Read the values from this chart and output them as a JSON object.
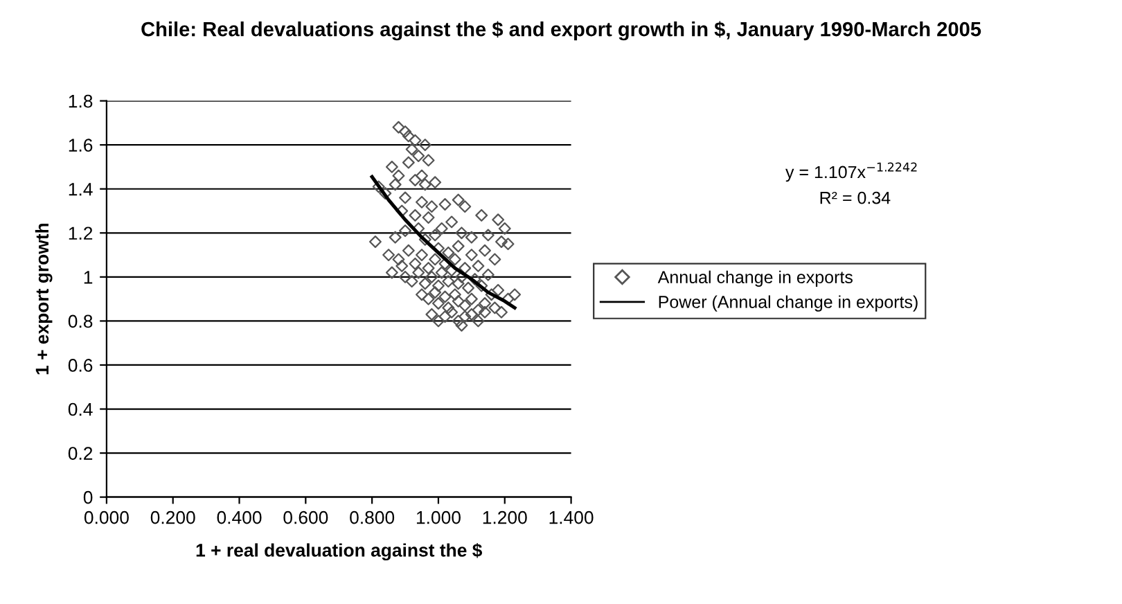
{
  "chart_data": {
    "type": "scatter",
    "title": "Chile: Real devaluations against the $ and export growth in $, January 1990-March 2005",
    "xlabel": "1 + real devaluation against the $",
    "ylabel": "1 + export growth",
    "annotations": [
      "y = 1.107x$^{−1.2242}$",
      "R² = 0.34"
    ],
    "xlim": [
      0,
      1.4
    ],
    "xticks": [
      {
        "value": 0,
        "label": "0.000"
      },
      {
        "value": 0.2,
        "label": "0.200"
      },
      {
        "value": 0.4,
        "label": "0.400"
      },
      {
        "value": 0.6,
        "label": "0.600"
      },
      {
        "value": 0.8,
        "label": "0.800"
      },
      {
        "value": 1.0,
        "label": "1.000"
      },
      {
        "value": 1.2,
        "label": "1.200"
      },
      {
        "value": 1.4,
        "label": "1.400"
      }
    ],
    "ylim": [
      0,
      1.8
    ],
    "yticks": [
      0,
      0.2,
      0.4,
      0.6,
      0.8,
      1,
      1.2,
      1.4,
      1.6,
      1.8
    ],
    "grid": "y",
    "legend": "right",
    "series": [
      {
        "name": "Annual change in exports",
        "marker": "diamond",
        "color": "#555555",
        "x": [
          0.88,
          0.9,
          0.91,
          0.93,
          0.92,
          0.96,
          0.94,
          0.91,
          0.97,
          0.86,
          0.88,
          0.93,
          0.95,
          0.96,
          0.99,
          0.87,
          0.82,
          0.84,
          0.9,
          0.95,
          0.98,
          1.02,
          0.89,
          0.93,
          0.97,
          1.06,
          1.08,
          1.13,
          1.18,
          1.2,
          0.81,
          0.87,
          0.9,
          0.94,
          0.96,
          0.99,
          1.01,
          1.04,
          1.07,
          1.1,
          1.15,
          1.19,
          1.21,
          0.85,
          0.88,
          0.91,
          0.93,
          0.95,
          0.97,
          0.99,
          1.0,
          1.02,
          1.03,
          1.05,
          1.06,
          1.08,
          1.1,
          1.12,
          1.14,
          1.17,
          0.9,
          0.92,
          0.94,
          0.96,
          0.98,
          1.0,
          1.01,
          1.03,
          1.04,
          1.06,
          1.07,
          1.09,
          1.11,
          1.13,
          1.15,
          1.18,
          0.95,
          0.97,
          0.99,
          1.0,
          1.02,
          1.03,
          1.05,
          1.06,
          1.08,
          1.1,
          1.12,
          1.14,
          1.16,
          1.17,
          1.19,
          1.21,
          1.23,
          0.98,
          1.0,
          1.02,
          1.04,
          1.06,
          1.08,
          1.1,
          1.12,
          1.14,
          1.07,
          0.89,
          0.86
        ],
        "values": [
          1.68,
          1.66,
          1.64,
          1.62,
          1.58,
          1.6,
          1.55,
          1.52,
          1.53,
          1.5,
          1.46,
          1.44,
          1.46,
          1.42,
          1.43,
          1.42,
          1.41,
          1.38,
          1.36,
          1.34,
          1.32,
          1.33,
          1.3,
          1.28,
          1.27,
          1.35,
          1.32,
          1.28,
          1.26,
          1.22,
          1.16,
          1.18,
          1.21,
          1.22,
          1.17,
          1.19,
          1.22,
          1.25,
          1.2,
          1.18,
          1.19,
          1.16,
          1.15,
          1.1,
          1.08,
          1.12,
          1.06,
          1.1,
          1.04,
          1.08,
          1.13,
          1.06,
          1.11,
          1.08,
          1.14,
          1.04,
          1.1,
          1.05,
          1.12,
          1.08,
          1.0,
          0.98,
          1.02,
          0.97,
          1.0,
          0.96,
          1.02,
          0.98,
          1.03,
          0.97,
          1.0,
          0.95,
          0.99,
          0.96,
          1.01,
          0.94,
          0.92,
          0.9,
          0.93,
          0.88,
          0.91,
          0.86,
          0.92,
          0.89,
          0.87,
          0.9,
          0.85,
          0.88,
          0.92,
          0.86,
          0.84,
          0.9,
          0.92,
          0.83,
          0.8,
          0.82,
          0.84,
          0.8,
          0.82,
          0.83,
          0.8,
          0.84,
          0.78,
          1.05,
          1.02
        ]
      },
      {
        "name": "Power (Annual change in exports)",
        "type": "line",
        "line_style": "solid",
        "color": "#000000",
        "x": [
          0.8,
          0.85,
          0.9,
          0.95,
          1.0,
          1.05,
          1.1,
          1.15,
          1.2,
          1.23
        ],
        "values": [
          1.455,
          1.35,
          1.26,
          1.18,
          1.11,
          1.04,
          0.99,
          0.93,
          0.89,
          0.86
        ]
      }
    ]
  }
}
